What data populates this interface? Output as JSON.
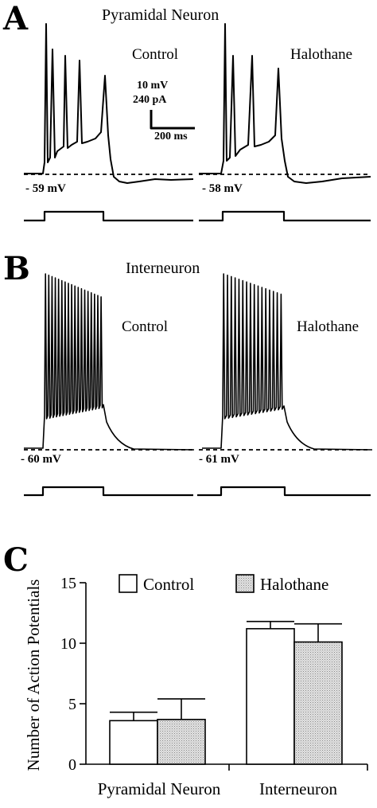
{
  "panel_a": {
    "letter": "A",
    "title": "Pyramidal Neuron",
    "left_condition": "Control",
    "right_condition": "Halothane",
    "left_resting": "- 59 mV",
    "right_resting": "- 58 mV",
    "scalebar": {
      "voltage": "10 mV",
      "current": "240 pA",
      "time": "200 ms"
    }
  },
  "panel_b": {
    "letter": "B",
    "title": "Interneuron",
    "left_condition": "Control",
    "right_condition": "Halothane",
    "left_resting": "- 60 mV",
    "right_resting": "- 61 mV"
  },
  "panel_c": {
    "letter": "C"
  },
  "chart_data": {
    "type": "bar",
    "categories": [
      "Pyramidal Neuron",
      "Interneuron"
    ],
    "series": [
      {
        "name": "Control",
        "values": [
          3.6,
          11.2
        ],
        "errors": [
          0.7,
          0.6
        ],
        "fill": "#ffffff"
      },
      {
        "name": "Halothane",
        "values": [
          3.7,
          10.1
        ],
        "errors": [
          1.7,
          1.5
        ],
        "fill": "#d6d6d6"
      }
    ],
    "ylabel": "Number of Action Potentials",
    "xlabel": "",
    "ylim": [
      0,
      15
    ],
    "yticks": [
      0,
      5,
      10,
      15
    ],
    "legend_position": "top"
  }
}
